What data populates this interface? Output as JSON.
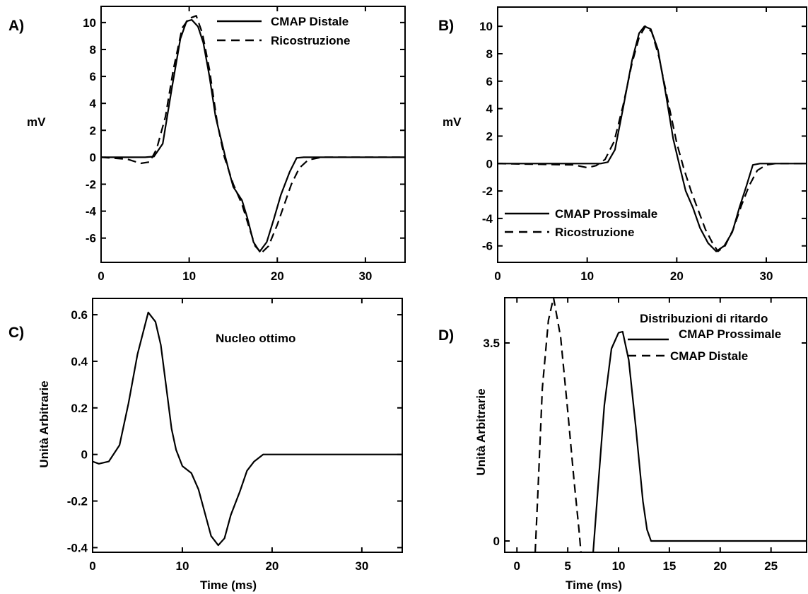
{
  "chart_data": [
    {
      "type": "line",
      "panel_label": "A)",
      "ylabel": "mV",
      "xlabel": "",
      "xlim": [
        0,
        34.5
      ],
      "ylim": [
        -7.8,
        11.2
      ],
      "xticks": [
        0,
        10,
        20,
        30
      ],
      "yticks": [
        10,
        8,
        6,
        4,
        2,
        0,
        -2,
        -4,
        -6
      ],
      "legend": "top-right",
      "series": [
        {
          "name": "CMAP Distale",
          "style": "solid",
          "points": [
            [
              0,
              0
            ],
            [
              5,
              0
            ],
            [
              6,
              0.05
            ],
            [
              7,
              1
            ],
            [
              8,
              5
            ],
            [
              9,
              8.8
            ],
            [
              9.7,
              10.1
            ],
            [
              10.3,
              10.2
            ],
            [
              11,
              9.7
            ],
            [
              11.6,
              8.5
            ],
            [
              12.3,
              6
            ],
            [
              13,
              3
            ],
            [
              14,
              0.3
            ],
            [
              14.5,
              -1
            ],
            [
              15,
              -2.2
            ],
            [
              16,
              -3.2
            ],
            [
              16.6,
              -4.5
            ],
            [
              17.3,
              -6.3
            ],
            [
              18,
              -7
            ],
            [
              18.8,
              -6.3
            ],
            [
              19.6,
              -4.6
            ],
            [
              20.4,
              -2.8
            ],
            [
              21.4,
              -1.1
            ],
            [
              22.2,
              -0.05
            ],
            [
              23,
              0
            ],
            [
              34.5,
              0
            ]
          ]
        },
        {
          "name": "Ricostruzione",
          "style": "dashed",
          "points": [
            [
              0,
              0
            ],
            [
              3,
              -0.15
            ],
            [
              4.5,
              -0.45
            ],
            [
              5.5,
              -0.35
            ],
            [
              6.3,
              0.6
            ],
            [
              7.3,
              3
            ],
            [
              8.2,
              6.5
            ],
            [
              9.2,
              9.6
            ],
            [
              10,
              10.3
            ],
            [
              10.8,
              10.5
            ],
            [
              11.5,
              9.2
            ],
            [
              12.3,
              6.5
            ],
            [
              13.2,
              2.5
            ],
            [
              14,
              0
            ],
            [
              15,
              -2
            ],
            [
              16,
              -3.5
            ],
            [
              16.8,
              -5.2
            ],
            [
              17.5,
              -6.6
            ],
            [
              18.2,
              -7.1
            ],
            [
              19,
              -6.6
            ],
            [
              20,
              -5
            ],
            [
              20.8,
              -3.5
            ],
            [
              21.6,
              -2
            ],
            [
              22.5,
              -0.8
            ],
            [
              23.5,
              -0.2
            ],
            [
              25,
              0
            ],
            [
              34.5,
              0
            ]
          ]
        }
      ]
    },
    {
      "type": "line",
      "panel_label": "B)",
      "ylabel": "mV",
      "xlabel": "",
      "xlim": [
        0,
        34.5
      ],
      "ylim": [
        -7.2,
        11.4
      ],
      "xticks": [
        0,
        10,
        20,
        30
      ],
      "yticks": [
        10,
        8,
        6,
        4,
        2,
        0,
        -2,
        -4,
        -6
      ],
      "legend": "bottom-left",
      "series": [
        {
          "name": "CMAP Prossimale",
          "style": "solid",
          "points": [
            [
              0,
              0
            ],
            [
              11.5,
              0
            ],
            [
              12.3,
              0.1
            ],
            [
              13.1,
              1
            ],
            [
              14,
              4
            ],
            [
              15,
              7.5
            ],
            [
              15.8,
              9.5
            ],
            [
              16.4,
              10
            ],
            [
              17.1,
              9.8
            ],
            [
              17.9,
              8.3
            ],
            [
              18.8,
              5
            ],
            [
              19.6,
              1.8
            ],
            [
              20.4,
              -0.4
            ],
            [
              21,
              -2
            ],
            [
              21.8,
              -3.2
            ],
            [
              22.6,
              -4.7
            ],
            [
              23.5,
              -5.8
            ],
            [
              24.4,
              -6.4
            ],
            [
              25.3,
              -6
            ],
            [
              26.2,
              -5
            ],
            [
              27,
              -3.2
            ],
            [
              27.8,
              -1.6
            ],
            [
              28.5,
              -0.1
            ],
            [
              29.3,
              0
            ],
            [
              34.5,
              0
            ]
          ]
        },
        {
          "name": "Ricostruzione",
          "style": "dashed",
          "points": [
            [
              0,
              0
            ],
            [
              8.5,
              -0.1
            ],
            [
              10,
              -0.3
            ],
            [
              11,
              -0.15
            ],
            [
              12,
              0.3
            ],
            [
              13,
              1.6
            ],
            [
              14,
              4.2
            ],
            [
              15,
              7.3
            ],
            [
              15.8,
              9.2
            ],
            [
              16.5,
              10
            ],
            [
              17.2,
              9.6
            ],
            [
              18,
              7.8
            ],
            [
              19,
              4.6
            ],
            [
              20,
              1.5
            ],
            [
              20.8,
              -0.4
            ],
            [
              21.6,
              -2
            ],
            [
              22.4,
              -3.4
            ],
            [
              23.2,
              -4.8
            ],
            [
              24,
              -5.8
            ],
            [
              24.6,
              -6.4
            ],
            [
              25.4,
              -6
            ],
            [
              26.3,
              -4.8
            ],
            [
              27.2,
              -3.1
            ],
            [
              28.1,
              -1.6
            ],
            [
              29,
              -0.5
            ],
            [
              30,
              -0.1
            ],
            [
              31,
              0
            ],
            [
              34.5,
              0
            ]
          ]
        }
      ]
    },
    {
      "type": "line",
      "panel_label": "C)",
      "ylabel": "Unità Arbitrarie",
      "xlabel": "Time (ms)",
      "xlim": [
        0,
        34.5
      ],
      "ylim": [
        -0.42,
        0.67
      ],
      "xticks": [
        0,
        10,
        20,
        30
      ],
      "yticks": [
        0.6,
        0.4,
        0.2,
        0,
        -0.2,
        -0.4
      ],
      "annotation": "Nucleo ottimo",
      "series": [
        {
          "name": "",
          "style": "solid",
          "points": [
            [
              0,
              -0.03
            ],
            [
              0.7,
              -0.04
            ],
            [
              1.8,
              -0.03
            ],
            [
              3,
              0.04
            ],
            [
              4,
              0.22
            ],
            [
              5,
              0.43
            ],
            [
              6.2,
              0.61
            ],
            [
              7,
              0.57
            ],
            [
              7.6,
              0.47
            ],
            [
              8.3,
              0.26
            ],
            [
              8.8,
              0.11
            ],
            [
              9.3,
              0.02
            ],
            [
              10,
              -0.05
            ],
            [
              11,
              -0.08
            ],
            [
              11.8,
              -0.15
            ],
            [
              12.5,
              -0.25
            ],
            [
              13.2,
              -0.35
            ],
            [
              14,
              -0.39
            ],
            [
              14.7,
              -0.36
            ],
            [
              15.4,
              -0.26
            ],
            [
              16.4,
              -0.16
            ],
            [
              17.2,
              -0.07
            ],
            [
              18,
              -0.03
            ],
            [
              19,
              0
            ],
            [
              20,
              0
            ],
            [
              34.5,
              0
            ]
          ]
        }
      ]
    },
    {
      "type": "line",
      "panel_label": "D)",
      "ylabel": "Unità Arbitrarie",
      "xlabel": "Time (ms)",
      "xlim": [
        -1.2,
        28.5
      ],
      "ylim": [
        -0.2,
        4.3
      ],
      "xticks": [
        0,
        5,
        10,
        15,
        20,
        25
      ],
      "yticks": [
        3.5,
        0
      ],
      "legend_title": "Distribuzioni di ritardo",
      "legend": "top-right",
      "series": [
        {
          "name": "CMAP Prossimale",
          "style": "solid",
          "points": [
            [
              7.5,
              -0.2
            ],
            [
              8,
              1
            ],
            [
              8.6,
              2.4
            ],
            [
              9.3,
              3.4
            ],
            [
              10,
              3.68
            ],
            [
              10.4,
              3.7
            ],
            [
              11,
              3.2
            ],
            [
              11.7,
              2
            ],
            [
              12.4,
              0.7
            ],
            [
              12.8,
              0.2
            ],
            [
              13.2,
              0
            ],
            [
              28.5,
              0
            ]
          ]
        },
        {
          "name": "CMAP Distale",
          "style": "dashed",
          "points": [
            [
              1.8,
              -0.2
            ],
            [
              2.1,
              1
            ],
            [
              2.5,
              2.7
            ],
            [
              3.1,
              3.9
            ],
            [
              3.6,
              4.3
            ],
            [
              4.3,
              3.6
            ],
            [
              5,
              2.3
            ],
            [
              5.6,
              1.1
            ],
            [
              6.1,
              0.2
            ],
            [
              6.3,
              -0.2
            ]
          ]
        }
      ]
    }
  ]
}
